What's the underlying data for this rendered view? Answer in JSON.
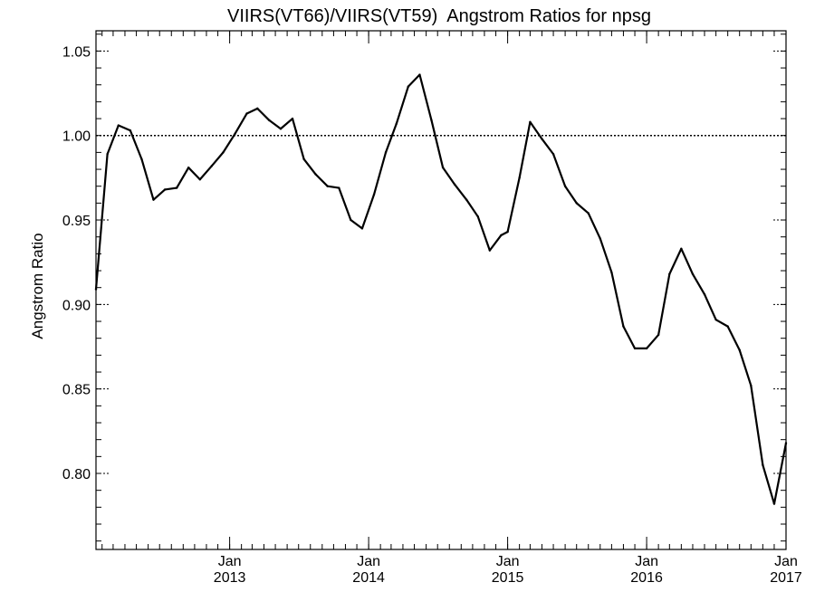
{
  "chart_data": {
    "type": "line",
    "title": "VIIRS(VT66)/VIIRS(VT59)  Angstrom Ratios for npsg",
    "xlabel": "",
    "ylabel": "Angstrom Ratio",
    "ylim": [
      0.755,
      1.062
    ],
    "xlim": [
      "2012-01-16",
      "2017-01-01"
    ],
    "grid": false,
    "reference_line": {
      "y": 1.0,
      "style": "dotted"
    },
    "y_ticks": [
      {
        "value": 0.8,
        "label": "0.80"
      },
      {
        "value": 0.85,
        "label": "0.85"
      },
      {
        "value": 0.9,
        "label": "0.90"
      },
      {
        "value": 0.95,
        "label": "0.95"
      },
      {
        "value": 1.0,
        "label": "1.00"
      },
      {
        "value": 1.05,
        "label": "1.05"
      }
    ],
    "y_minor_step": 0.01,
    "x_minor_months": 1,
    "x_ticks": [
      {
        "date": "2013-01-01",
        "month": "Jan",
        "year": "2013"
      },
      {
        "date": "2014-01-01",
        "month": "Jan",
        "year": "2014"
      },
      {
        "date": "2015-01-01",
        "month": "Jan",
        "year": "2015"
      },
      {
        "date": "2016-01-01",
        "month": "Jan",
        "year": "2016"
      },
      {
        "date": "2017-01-01",
        "month": "Jan",
        "year": "2017"
      }
    ],
    "series": [
      {
        "color": "#000000",
        "points": [
          [
            "2012-01-16",
            0.909
          ],
          [
            "2012-02-15",
            0.989
          ],
          [
            "2012-03-15",
            1.006
          ],
          [
            "2012-04-15",
            1.003
          ],
          [
            "2012-05-15",
            0.986
          ],
          [
            "2012-06-15",
            0.962
          ],
          [
            "2012-07-15",
            0.968
          ],
          [
            "2012-08-15",
            0.969
          ],
          [
            "2012-09-15",
            0.981
          ],
          [
            "2012-10-15",
            0.974
          ],
          [
            "2012-11-15",
            0.982
          ],
          [
            "2012-12-15",
            0.99
          ],
          [
            "2013-01-15",
            1.001
          ],
          [
            "2013-02-15",
            1.013
          ],
          [
            "2013-03-15",
            1.016
          ],
          [
            "2013-04-15",
            1.009
          ],
          [
            "2013-05-15",
            1.004
          ],
          [
            "2013-06-15",
            1.01
          ],
          [
            "2013-07-15",
            0.986
          ],
          [
            "2013-08-15",
            0.977
          ],
          [
            "2013-09-15",
            0.97
          ],
          [
            "2013-10-15",
            0.969
          ],
          [
            "2013-11-15",
            0.95
          ],
          [
            "2013-12-15",
            0.945
          ],
          [
            "2014-01-15",
            0.965
          ],
          [
            "2014-02-15",
            0.99
          ],
          [
            "2014-03-15",
            1.007
          ],
          [
            "2014-04-15",
            1.029
          ],
          [
            "2014-05-15",
            1.036
          ],
          [
            "2014-06-15",
            1.009
          ],
          [
            "2014-07-15",
            0.981
          ],
          [
            "2014-08-15",
            0.971
          ],
          [
            "2014-09-15",
            0.962
          ],
          [
            "2014-10-15",
            0.952
          ],
          [
            "2014-11-15",
            0.932
          ],
          [
            "2014-12-15",
            0.941
          ],
          [
            "2015-01-01",
            0.943
          ],
          [
            "2015-02-01",
            0.975
          ],
          [
            "2015-03-01",
            1.008
          ],
          [
            "2015-04-01",
            0.998
          ],
          [
            "2015-05-01",
            0.989
          ],
          [
            "2015-06-01",
            0.97
          ],
          [
            "2015-07-01",
            0.96
          ],
          [
            "2015-08-01",
            0.954
          ],
          [
            "2015-09-01",
            0.939
          ],
          [
            "2015-10-01",
            0.919
          ],
          [
            "2015-11-01",
            0.887
          ],
          [
            "2015-12-01",
            0.874
          ],
          [
            "2016-01-01",
            0.874
          ],
          [
            "2016-02-01",
            0.882
          ],
          [
            "2016-03-01",
            0.918
          ],
          [
            "2016-04-01",
            0.933
          ],
          [
            "2016-05-01",
            0.918
          ],
          [
            "2016-06-01",
            0.906
          ],
          [
            "2016-07-01",
            0.891
          ],
          [
            "2016-08-01",
            0.887
          ],
          [
            "2016-09-01",
            0.873
          ],
          [
            "2016-10-01",
            0.852
          ],
          [
            "2016-11-01",
            0.805
          ],
          [
            "2016-12-01",
            0.782
          ],
          [
            "2017-01-01",
            0.818
          ]
        ]
      }
    ]
  }
}
